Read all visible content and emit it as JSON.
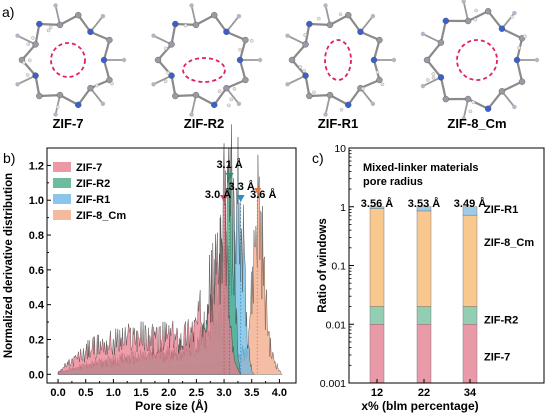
{
  "panel_a": {
    "label": "a)",
    "structures": [
      {
        "name": "ZIF-7",
        "pore_shape": "circle"
      },
      {
        "name": "ZIF-R2",
        "pore_shape": "ellipse-horizontal"
      },
      {
        "name": "ZIF-R1",
        "pore_shape": "ellipse-vertical"
      },
      {
        "name": "ZIF-8_Cm",
        "pore_shape": "circle"
      }
    ]
  },
  "chart_data": [
    {
      "panel_label": "b)",
      "type": "area",
      "xlabel": "Pore size (Å)",
      "ylabel": "Normalized derivative distribution",
      "xlim": [
        -0.2,
        4.3
      ],
      "ylim": [
        -0.05,
        1.3
      ],
      "xticks": [
        "0.0",
        "0.5",
        "1.0",
        "1.5",
        "2.0",
        "2.5",
        "3.0",
        "3.5",
        "4.0"
      ],
      "yticks": [
        "0.0",
        "0.2",
        "0.4",
        "0.6",
        "0.8",
        "1.0",
        "1.2"
      ],
      "legend_position": "top-left",
      "series": [
        {
          "name": "ZIF-7",
          "color": "#e87e8e",
          "points": [
            [
              0,
              0.02
            ],
            [
              0.3,
              0.08
            ],
            [
              0.6,
              0.15
            ],
            [
              1.0,
              0.18
            ],
            [
              1.4,
              0.22
            ],
            [
              1.8,
              0.2
            ],
            [
              2.0,
              0.22
            ],
            [
              2.2,
              0.2
            ],
            [
              2.5,
              0.28
            ],
            [
              2.7,
              0.45
            ],
            [
              2.85,
              0.58
            ],
            [
              2.95,
              0.75
            ],
            [
              3.0,
              0.92
            ],
            [
              3.02,
              1.0
            ],
            [
              3.05,
              0.7
            ],
            [
              3.1,
              0.3
            ],
            [
              3.2,
              0.05
            ],
            [
              3.3,
              0.0
            ]
          ]
        },
        {
          "name": "ZIF-R2",
          "color": "#4aab86",
          "points": [
            [
              0,
              0.01
            ],
            [
              0.5,
              0.05
            ],
            [
              1.0,
              0.08
            ],
            [
              1.5,
              0.1
            ],
            [
              2.0,
              0.12
            ],
            [
              2.4,
              0.16
            ],
            [
              2.6,
              0.22
            ],
            [
              2.8,
              0.4
            ],
            [
              3.0,
              0.75
            ],
            [
              3.08,
              1.02
            ],
            [
              3.12,
              1.1
            ],
            [
              3.18,
              0.7
            ],
            [
              3.25,
              0.1
            ],
            [
              3.3,
              0.0
            ]
          ]
        },
        {
          "name": "ZIF-R1",
          "color": "#6db8e3",
          "points": [
            [
              0,
              0.01
            ],
            [
              0.5,
              0.04
            ],
            [
              1.0,
              0.06
            ],
            [
              1.5,
              0.09
            ],
            [
              2.0,
              0.1
            ],
            [
              2.4,
              0.13
            ],
            [
              2.7,
              0.18
            ],
            [
              3.0,
              0.32
            ],
            [
              3.1,
              0.6
            ],
            [
              3.2,
              0.9
            ],
            [
              3.27,
              1.0
            ],
            [
              3.33,
              0.85
            ],
            [
              3.4,
              0.3
            ],
            [
              3.5,
              0.02
            ],
            [
              3.55,
              0.0
            ]
          ]
        },
        {
          "name": "ZIF-8_Cm",
          "color": "#f2a885",
          "points": [
            [
              0,
              0.0
            ],
            [
              1.0,
              0.02
            ],
            [
              2.0,
              0.04
            ],
            [
              2.8,
              0.05
            ],
            [
              3.2,
              0.06
            ],
            [
              3.4,
              0.15
            ],
            [
              3.5,
              0.45
            ],
            [
              3.57,
              0.85
            ],
            [
              3.62,
              1.0
            ],
            [
              3.68,
              0.8
            ],
            [
              3.75,
              0.4
            ],
            [
              3.85,
              0.12
            ],
            [
              4.0,
              0.02
            ],
            [
              4.05,
              0.0
            ]
          ]
        }
      ],
      "annotations": [
        {
          "text": "3.0 Å",
          "x": 3.0,
          "color": "#c9475c"
        },
        {
          "text": "3.1 Å",
          "x": 3.1,
          "color": "#2e8f69"
        },
        {
          "text": "3.3 Å",
          "x": 3.3,
          "color": "#2e8fc4"
        },
        {
          "text": "3.6 Å",
          "x": 3.6,
          "color": "#e0743f"
        }
      ]
    },
    {
      "panel_label": "c)",
      "type": "bar",
      "stacked": true,
      "log_scale_y": true,
      "title": "Mixed-linker materials pore radius",
      "title_lines": [
        "Mixed-linker materials",
        "pore radius"
      ],
      "xlabel": "x% (blm percentage)",
      "ylabel": "Ratio of windows",
      "categories": [
        "12",
        "22",
        "34"
      ],
      "bar_labels": [
        "3.56 Å",
        "3.53 Å",
        "3.49 Å"
      ],
      "ylim": [
        0.001,
        10
      ],
      "yticks": [
        "0.001",
        "0.01",
        "0.1",
        "1",
        "10"
      ],
      "series": [
        {
          "name": "ZIF-7",
          "color": "#e99aa8",
          "values": [
            0.01,
            0.01,
            0.01
          ]
        },
        {
          "name": "ZIF-R2",
          "color": "#93ceb3",
          "values": [
            0.01,
            0.01,
            0.01
          ]
        },
        {
          "name": "ZIF-8_Cm",
          "color": "#f8c88f",
          "values": [
            0.91,
            0.83,
            0.7
          ]
        },
        {
          "name": "ZIF-R1",
          "color": "#9fcbe9",
          "values": [
            0.07,
            0.15,
            0.28
          ]
        }
      ]
    }
  ]
}
